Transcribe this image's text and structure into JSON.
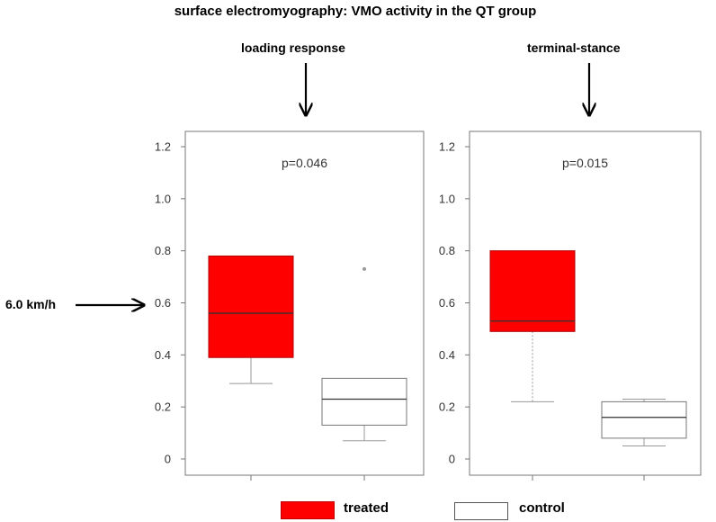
{
  "title": "surface electromyography: VMO activity in the QT group",
  "annotations": {
    "phase_left": "loading  response",
    "phase_right": "terminal-stance",
    "speed_label": "6.0 km/h"
  },
  "legend": [
    {
      "label": "treated",
      "color": "#ff0000"
    },
    {
      "label": "control",
      "color": "#ffffff"
    }
  ],
  "chart_data": [
    {
      "type": "box",
      "panel": "loading response",
      "annotation": "p=0.046",
      "ylim": [
        0,
        1.2
      ],
      "yticks": [
        "0",
        "0.2",
        "0.4",
        "0.6",
        "0.8",
        "1.0",
        "1.2"
      ],
      "series": [
        {
          "name": "treated",
          "color": "#ff0000",
          "min": 0.29,
          "q1": 0.39,
          "median": 0.56,
          "q3": 0.78,
          "max": 0.78,
          "outliers": []
        },
        {
          "name": "control",
          "color": "#ffffff",
          "min": 0.07,
          "q1": 0.13,
          "median": 0.23,
          "q3": 0.31,
          "max": 0.31,
          "outliers": [
            0.73
          ]
        }
      ]
    },
    {
      "type": "box",
      "panel": "terminal-stance",
      "annotation": "p=0.015",
      "ylim": [
        0,
        1.2
      ],
      "yticks": [
        "0",
        "0.2",
        "0.4",
        "0.6",
        "0.8",
        "1.0",
        "1.2"
      ],
      "series": [
        {
          "name": "treated",
          "color": "#ff0000",
          "min": 0.22,
          "q1": 0.49,
          "median": 0.53,
          "q3": 0.8,
          "max": 0.8,
          "outliers": []
        },
        {
          "name": "control",
          "color": "#ffffff",
          "min": 0.05,
          "q1": 0.08,
          "median": 0.16,
          "q3": 0.22,
          "max": 0.23,
          "outliers": []
        }
      ]
    }
  ]
}
